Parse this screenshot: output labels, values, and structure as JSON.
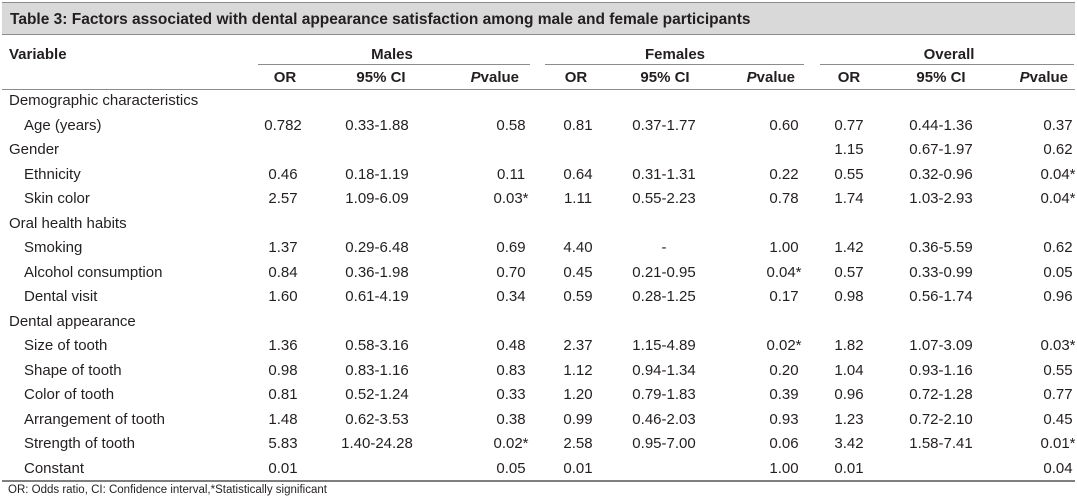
{
  "title": "Table 3: Factors associated with dental appearance satisfaction among male and female participants",
  "header": {
    "variable": "Variable",
    "groups": [
      "Males",
      "Females",
      "Overall"
    ],
    "or": "OR",
    "ci": "95% CI",
    "p_italic": "P",
    "p_rest": "value"
  },
  "rows": [
    {
      "label": "Demographic characteristics",
      "indent": false,
      "cells": [
        "",
        "",
        "",
        "",
        "",
        "",
        "",
        "",
        ""
      ]
    },
    {
      "label": "Age (years)",
      "indent": true,
      "cells": [
        "0.782",
        "0.33-1.88",
        "0.58",
        "0.81",
        "0.37-1.77",
        "0.60",
        "0.77",
        "0.44-1.36",
        "0.37"
      ]
    },
    {
      "label": "Gender",
      "indent": false,
      "cells": [
        "",
        "",
        "",
        "",
        "",
        "",
        "1.15",
        "0.67-1.97",
        "0.62"
      ]
    },
    {
      "label": "Ethnicity",
      "indent": true,
      "cells": [
        "0.46",
        "0.18-1.19",
        "0.11",
        "0.64",
        "0.31-1.31",
        "0.22",
        "0.55",
        "0.32-0.96",
        "0.04*"
      ]
    },
    {
      "label": "Skin color",
      "indent": true,
      "cells": [
        "2.57",
        "1.09-6.09",
        "0.03*",
        "1.11",
        "0.55-2.23",
        "0.78",
        "1.74",
        "1.03-2.93",
        "0.04*"
      ]
    },
    {
      "label": "Oral health habits",
      "indent": false,
      "cells": [
        "",
        "",
        "",
        "",
        "",
        "",
        "",
        "",
        ""
      ]
    },
    {
      "label": "Smoking",
      "indent": true,
      "cells": [
        "1.37",
        "0.29-6.48",
        "0.69",
        "4.40",
        "-",
        "1.00",
        "1.42",
        "0.36-5.59",
        "0.62"
      ]
    },
    {
      "label": "Alcohol consumption",
      "indent": true,
      "cells": [
        "0.84",
        "0.36-1.98",
        "0.70",
        "0.45",
        "0.21-0.95",
        "0.04*",
        "0.57",
        "0.33-0.99",
        "0.05"
      ]
    },
    {
      "label": "Dental visit",
      "indent": true,
      "cells": [
        "1.60",
        "0.61-4.19",
        "0.34",
        "0.59",
        "0.28-1.25",
        "0.17",
        "0.98",
        "0.56-1.74",
        "0.96"
      ]
    },
    {
      "label": "Dental appearance",
      "indent": false,
      "cells": [
        "",
        "",
        "",
        "",
        "",
        "",
        "",
        "",
        ""
      ]
    },
    {
      "label": "Size of tooth",
      "indent": true,
      "cells": [
        "1.36",
        "0.58-3.16",
        "0.48",
        "2.37",
        "1.15-4.89",
        "0.02*",
        "1.82",
        "1.07-3.09",
        "0.03*"
      ]
    },
    {
      "label": "Shape of tooth",
      "indent": true,
      "cells": [
        "0.98",
        "0.83-1.16",
        "0.83",
        "1.12",
        "0.94-1.34",
        "0.20",
        "1.04",
        "0.93-1.16",
        "0.55"
      ]
    },
    {
      "label": "Color of tooth",
      "indent": true,
      "cells": [
        "0.81",
        "0.52-1.24",
        "0.33",
        "1.20",
        "0.79-1.83",
        "0.39",
        "0.96",
        "0.72-1.28",
        "0.77"
      ]
    },
    {
      "label": "Arrangement of tooth",
      "indent": true,
      "cells": [
        "1.48",
        "0.62-3.53",
        "0.38",
        "0.99",
        "0.46-2.03",
        "0.93",
        "1.23",
        "0.72-2.10",
        "0.45"
      ]
    },
    {
      "label": "Strength of tooth",
      "indent": true,
      "cells": [
        "5.83",
        "1.40-24.28",
        "0.02*",
        "2.58",
        "0.95-7.00",
        "0.06",
        "3.42",
        "1.58-7.41",
        "0.01*"
      ]
    },
    {
      "label": "Constant",
      "indent": true,
      "cells": [
        "0.01",
        "",
        "0.05",
        "0.01",
        "",
        "1.00",
        "0.01",
        "",
        "0.04"
      ]
    }
  ],
  "footnote": "OR: Odds ratio, CI: Confidence interval,*Statistically significant"
}
